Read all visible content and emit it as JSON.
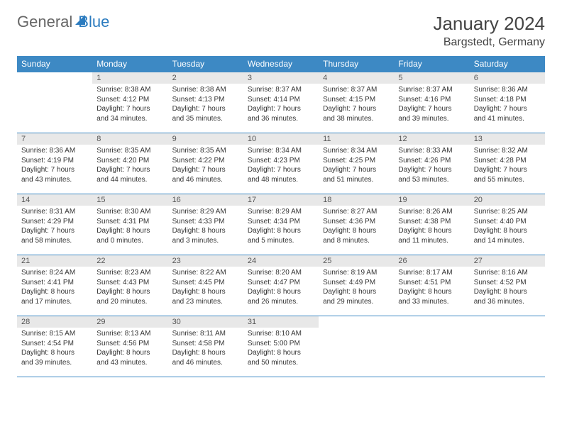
{
  "logo": {
    "part1": "General",
    "part2": "Blue"
  },
  "title": "January 2024",
  "location": "Bargstedt, Germany",
  "header_color": "#3d89c4",
  "daynum_bg": "#e8e8e8",
  "text_color": "#333333",
  "fontsize_title": 26,
  "fontsize_location": 16,
  "fontsize_header": 12,
  "fontsize_cell": 10,
  "weekdays": [
    "Sunday",
    "Monday",
    "Tuesday",
    "Wednesday",
    "Thursday",
    "Friday",
    "Saturday"
  ],
  "weeks": [
    [
      {
        "day": "",
        "sunrise": "",
        "sunset": "",
        "daylight": ""
      },
      {
        "day": "1",
        "sunrise": "Sunrise: 8:38 AM",
        "sunset": "Sunset: 4:12 PM",
        "daylight": "Daylight: 7 hours and 34 minutes."
      },
      {
        "day": "2",
        "sunrise": "Sunrise: 8:38 AM",
        "sunset": "Sunset: 4:13 PM",
        "daylight": "Daylight: 7 hours and 35 minutes."
      },
      {
        "day": "3",
        "sunrise": "Sunrise: 8:37 AM",
        "sunset": "Sunset: 4:14 PM",
        "daylight": "Daylight: 7 hours and 36 minutes."
      },
      {
        "day": "4",
        "sunrise": "Sunrise: 8:37 AM",
        "sunset": "Sunset: 4:15 PM",
        "daylight": "Daylight: 7 hours and 38 minutes."
      },
      {
        "day": "5",
        "sunrise": "Sunrise: 8:37 AM",
        "sunset": "Sunset: 4:16 PM",
        "daylight": "Daylight: 7 hours and 39 minutes."
      },
      {
        "day": "6",
        "sunrise": "Sunrise: 8:36 AM",
        "sunset": "Sunset: 4:18 PM",
        "daylight": "Daylight: 7 hours and 41 minutes."
      }
    ],
    [
      {
        "day": "7",
        "sunrise": "Sunrise: 8:36 AM",
        "sunset": "Sunset: 4:19 PM",
        "daylight": "Daylight: 7 hours and 43 minutes."
      },
      {
        "day": "8",
        "sunrise": "Sunrise: 8:35 AM",
        "sunset": "Sunset: 4:20 PM",
        "daylight": "Daylight: 7 hours and 44 minutes."
      },
      {
        "day": "9",
        "sunrise": "Sunrise: 8:35 AM",
        "sunset": "Sunset: 4:22 PM",
        "daylight": "Daylight: 7 hours and 46 minutes."
      },
      {
        "day": "10",
        "sunrise": "Sunrise: 8:34 AM",
        "sunset": "Sunset: 4:23 PM",
        "daylight": "Daylight: 7 hours and 48 minutes."
      },
      {
        "day": "11",
        "sunrise": "Sunrise: 8:34 AM",
        "sunset": "Sunset: 4:25 PM",
        "daylight": "Daylight: 7 hours and 51 minutes."
      },
      {
        "day": "12",
        "sunrise": "Sunrise: 8:33 AM",
        "sunset": "Sunset: 4:26 PM",
        "daylight": "Daylight: 7 hours and 53 minutes."
      },
      {
        "day": "13",
        "sunrise": "Sunrise: 8:32 AM",
        "sunset": "Sunset: 4:28 PM",
        "daylight": "Daylight: 7 hours and 55 minutes."
      }
    ],
    [
      {
        "day": "14",
        "sunrise": "Sunrise: 8:31 AM",
        "sunset": "Sunset: 4:29 PM",
        "daylight": "Daylight: 7 hours and 58 minutes."
      },
      {
        "day": "15",
        "sunrise": "Sunrise: 8:30 AM",
        "sunset": "Sunset: 4:31 PM",
        "daylight": "Daylight: 8 hours and 0 minutes."
      },
      {
        "day": "16",
        "sunrise": "Sunrise: 8:29 AM",
        "sunset": "Sunset: 4:33 PM",
        "daylight": "Daylight: 8 hours and 3 minutes."
      },
      {
        "day": "17",
        "sunrise": "Sunrise: 8:29 AM",
        "sunset": "Sunset: 4:34 PM",
        "daylight": "Daylight: 8 hours and 5 minutes."
      },
      {
        "day": "18",
        "sunrise": "Sunrise: 8:27 AM",
        "sunset": "Sunset: 4:36 PM",
        "daylight": "Daylight: 8 hours and 8 minutes."
      },
      {
        "day": "19",
        "sunrise": "Sunrise: 8:26 AM",
        "sunset": "Sunset: 4:38 PM",
        "daylight": "Daylight: 8 hours and 11 minutes."
      },
      {
        "day": "20",
        "sunrise": "Sunrise: 8:25 AM",
        "sunset": "Sunset: 4:40 PM",
        "daylight": "Daylight: 8 hours and 14 minutes."
      }
    ],
    [
      {
        "day": "21",
        "sunrise": "Sunrise: 8:24 AM",
        "sunset": "Sunset: 4:41 PM",
        "daylight": "Daylight: 8 hours and 17 minutes."
      },
      {
        "day": "22",
        "sunrise": "Sunrise: 8:23 AM",
        "sunset": "Sunset: 4:43 PM",
        "daylight": "Daylight: 8 hours and 20 minutes."
      },
      {
        "day": "23",
        "sunrise": "Sunrise: 8:22 AM",
        "sunset": "Sunset: 4:45 PM",
        "daylight": "Daylight: 8 hours and 23 minutes."
      },
      {
        "day": "24",
        "sunrise": "Sunrise: 8:20 AM",
        "sunset": "Sunset: 4:47 PM",
        "daylight": "Daylight: 8 hours and 26 minutes."
      },
      {
        "day": "25",
        "sunrise": "Sunrise: 8:19 AM",
        "sunset": "Sunset: 4:49 PM",
        "daylight": "Daylight: 8 hours and 29 minutes."
      },
      {
        "day": "26",
        "sunrise": "Sunrise: 8:17 AM",
        "sunset": "Sunset: 4:51 PM",
        "daylight": "Daylight: 8 hours and 33 minutes."
      },
      {
        "day": "27",
        "sunrise": "Sunrise: 8:16 AM",
        "sunset": "Sunset: 4:52 PM",
        "daylight": "Daylight: 8 hours and 36 minutes."
      }
    ],
    [
      {
        "day": "28",
        "sunrise": "Sunrise: 8:15 AM",
        "sunset": "Sunset: 4:54 PM",
        "daylight": "Daylight: 8 hours and 39 minutes."
      },
      {
        "day": "29",
        "sunrise": "Sunrise: 8:13 AM",
        "sunset": "Sunset: 4:56 PM",
        "daylight": "Daylight: 8 hours and 43 minutes."
      },
      {
        "day": "30",
        "sunrise": "Sunrise: 8:11 AM",
        "sunset": "Sunset: 4:58 PM",
        "daylight": "Daylight: 8 hours and 46 minutes."
      },
      {
        "day": "31",
        "sunrise": "Sunrise: 8:10 AM",
        "sunset": "Sunset: 5:00 PM",
        "daylight": "Daylight: 8 hours and 50 minutes."
      },
      {
        "day": "",
        "sunrise": "",
        "sunset": "",
        "daylight": ""
      },
      {
        "day": "",
        "sunrise": "",
        "sunset": "",
        "daylight": ""
      },
      {
        "day": "",
        "sunrise": "",
        "sunset": "",
        "daylight": ""
      }
    ]
  ]
}
